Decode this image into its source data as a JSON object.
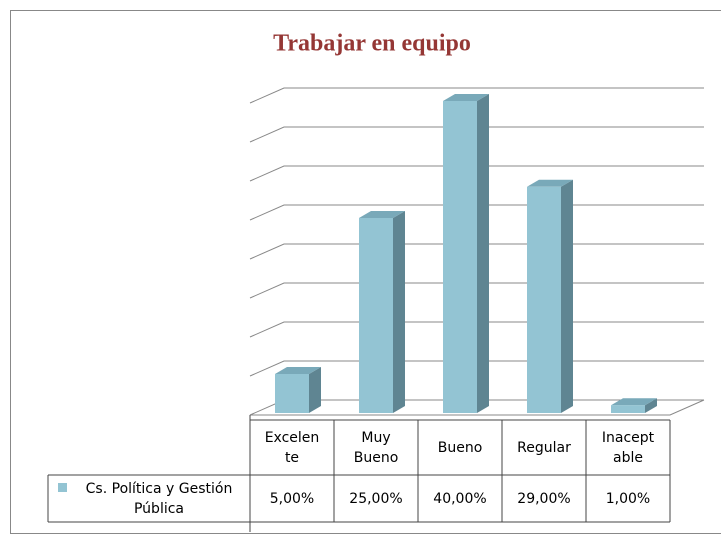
{
  "chart_data": {
    "type": "bar3d",
    "title": "Trabajar en equipo",
    "categories": [
      "Excelente",
      "Muy Bueno",
      "Bueno",
      "Regular",
      "Inaceptable"
    ],
    "series": [
      {
        "name": "Cs. Política y Gestión Pública",
        "color": "#93c4d3",
        "values": [
          5,
          25,
          40,
          29,
          1
        ],
        "value_labels": [
          "5,00%",
          "25,00%",
          "40,00%",
          "29,00%",
          "1,00%"
        ]
      }
    ],
    "ylim": [
      0,
      40
    ],
    "yticks": [
      0,
      5,
      10,
      15,
      20,
      25,
      30,
      35,
      40
    ],
    "grid": true
  }
}
